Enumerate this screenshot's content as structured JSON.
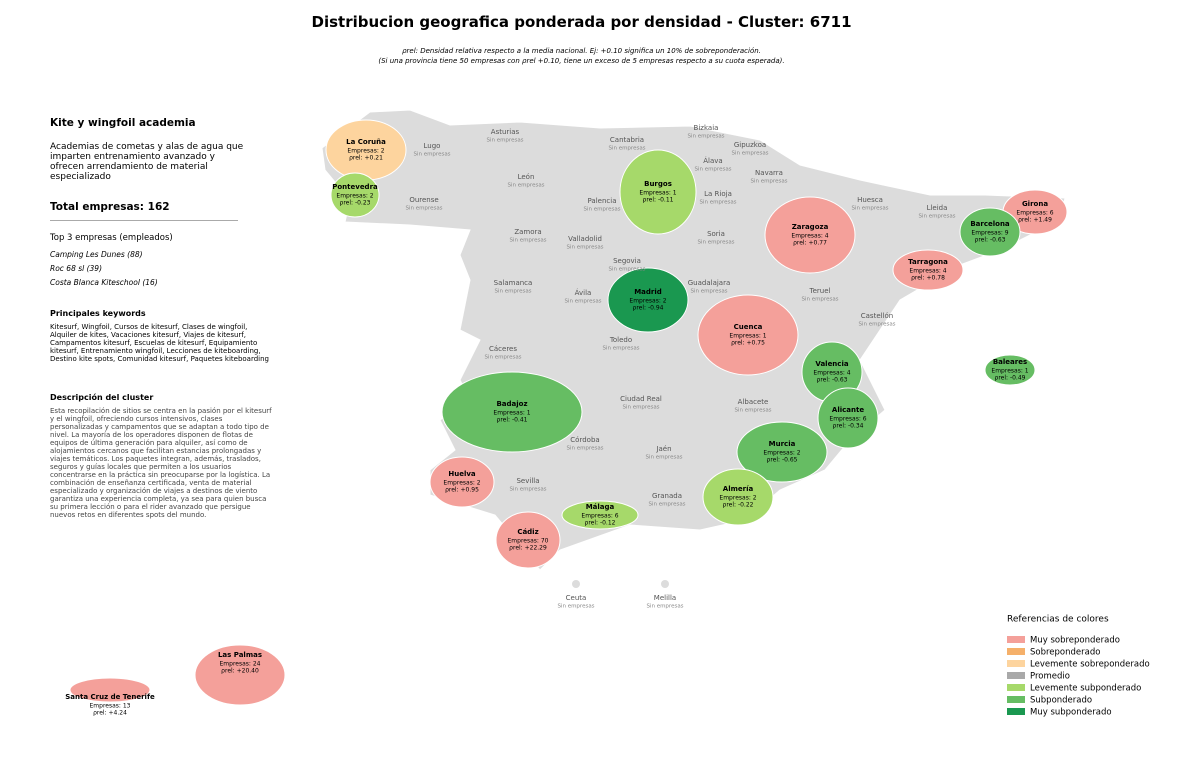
{
  "header": {
    "title": "Distribucion geografica ponderada por densidad - Cluster: 6711",
    "subtitle_lines": [
      "ρrel: Densidad relativa respecto a la media nacional. Ej: +0.10 significa un 10% de sobreponderación.",
      "(Si una provincia tiene 50 empresas con ρrel +0.10, tiene un exceso de 5 empresas respecto a su cuota esperada)."
    ]
  },
  "sidebar": {
    "cluster_name": "Kite y wingfoil academia",
    "summary": "Academias de cometas y alas de agua que imparten entrenamiento avanzado y ofrecen arrendamiento de material especializado",
    "total": "Total empresas: 162",
    "top_heading": "Top 3 empresas (empleados)",
    "top": [
      "Camping Les Dunes (88)",
      "Roc 68 sl (39)",
      "Costa Blanca Kiteschool (16)"
    ],
    "keywords_heading": "Principales keywords",
    "keywords": "Kitesurf, Wingfoil, Cursos de kitesurf, Clases de wingfoil, Alquiler de kites, Vacaciones kitesurf, Viajes de kitesurf, Campamentos kitesurf, Escuelas de kitesurf, Equipamiento kitesurf, Entrenamiento wingfoil, Lecciones de kiteboarding, Destino kite spots, Comunidad kitesurf, Paquetes kiteboarding",
    "description_heading": "Descripción del cluster",
    "description": "Esta recopilación de sitios se centra en la pasión por el kitesurf y el wingfoil, ofreciendo cursos intensivos, clases personalizadas y campamentos que se adaptan a todo tipo de nivel. La mayoría de los operadores disponen de flotas de equipos de última generación para alquiler, así como de alojamientos cercanos que facilitan estancias prolongadas y viajes temáticos. Los paquetes integran, además, traslados, seguros y guías locales que permiten a los usuarios concentrarse en la práctica sin preocuparse por la logística. La combinación de enseñanza certificada, venta de material especializado y organización de viajes a destinos de viento garantiza una experiencia completa, ya sea para quien busca su primera lección o para el rider avanzado que persigue nuevos retos en diferentes spots del mundo."
  },
  "provinces": [
    {
      "name": "La Coruña",
      "empresas": "Empresas: 2",
      "rho": "ρrel: +0.21",
      "color": "#fdd49e"
    },
    {
      "name": "Pontevedra",
      "empresas": "Empresas: 2",
      "rho": "ρrel: -0.23",
      "color": "#a6d96a"
    },
    {
      "name": "Burgos",
      "empresas": "Empresas: 1",
      "rho": "ρrel: -0.11",
      "color": "#a6d96a"
    },
    {
      "name": "Girona",
      "empresas": "Empresas: 6",
      "rho": "ρrel: +1.49",
      "color": "#f4a09a"
    },
    {
      "name": "Barcelona",
      "empresas": "Empresas: 9",
      "rho": "ρrel: -0.63",
      "color": "#66bd63"
    },
    {
      "name": "Zaragoza",
      "empresas": "Empresas: 4",
      "rho": "ρrel: +0.77",
      "color": "#f4a09a"
    },
    {
      "name": "Tarragona",
      "empresas": "Empresas: 4",
      "rho": "ρrel: +0.78",
      "color": "#f4a09a"
    },
    {
      "name": "Madrid",
      "empresas": "Empresas: 2",
      "rho": "ρrel: -0.94",
      "color": "#1a9850"
    },
    {
      "name": "Cuenca",
      "empresas": "Empresas: 1",
      "rho": "ρrel: +0.75",
      "color": "#f4a09a"
    },
    {
      "name": "Valencia",
      "empresas": "Empresas: 4",
      "rho": "ρrel: -0.63",
      "color": "#66bd63"
    },
    {
      "name": "Baleares",
      "empresas": "Empresas: 1",
      "rho": "ρrel: -0.49",
      "color": "#66bd63"
    },
    {
      "name": "Badajoz",
      "empresas": "Empresas: 1",
      "rho": "ρrel: -0.41",
      "color": "#66bd63"
    },
    {
      "name": "Alicante",
      "empresas": "Empresas: 6",
      "rho": "ρrel: -0.34",
      "color": "#66bd63"
    },
    {
      "name": "Murcia",
      "empresas": "Empresas: 2",
      "rho": "ρrel: -0.65",
      "color": "#66bd63"
    },
    {
      "name": "Huelva",
      "empresas": "Empresas: 2",
      "rho": "ρrel: +0.95",
      "color": "#f4a09a"
    },
    {
      "name": "Almería",
      "empresas": "Empresas: 2",
      "rho": "ρrel: -0.22",
      "color": "#a6d96a"
    },
    {
      "name": "Málaga",
      "empresas": "Empresas: 6",
      "rho": "ρrel: -0.12",
      "color": "#a6d96a"
    },
    {
      "name": "Cádiz",
      "empresas": "Empresas: 70",
      "rho": "ρrel: +22.29",
      "color": "#f4a09a"
    },
    {
      "name": "Las Palmas",
      "empresas": "Empresas: 24",
      "rho": "ρrel: +20.40",
      "color": "#f4a09a"
    },
    {
      "name": "Santa Cruz de Tenerife",
      "empresas": "Empresas: 13",
      "rho": "ρrel: +4.24",
      "color": "#f4a09a"
    }
  ],
  "empty_provinces": [
    {
      "name": "Lugo",
      "note": "Sin empresas"
    },
    {
      "name": "Asturias",
      "note": "Sin empresas"
    },
    {
      "name": "Cantabria",
      "note": "Sin empresas"
    },
    {
      "name": "Bizkaia",
      "note": "Sin empresas"
    },
    {
      "name": "Gipuzkoa",
      "note": "Sin empresas"
    },
    {
      "name": "Álava",
      "note": "Sin empresas"
    },
    {
      "name": "Navarra",
      "note": "Sin empresas"
    },
    {
      "name": "León",
      "note": "Sin empresas"
    },
    {
      "name": "Palencia",
      "note": "Sin empresas"
    },
    {
      "name": "La Rioja",
      "note": "Sin empresas"
    },
    {
      "name": "Ourense",
      "note": "Sin empresas"
    },
    {
      "name": "Huesca",
      "note": "Sin empresas"
    },
    {
      "name": "Lleida",
      "note": "Sin empresas"
    },
    {
      "name": "Zamora",
      "note": "Sin empresas"
    },
    {
      "name": "Valladolid",
      "note": "Sin empresas"
    },
    {
      "name": "Soria",
      "note": "Sin empresas"
    },
    {
      "name": "Segovia",
      "note": "Sin empresas"
    },
    {
      "name": "Salamanca",
      "note": "Sin empresas"
    },
    {
      "name": "Ávila",
      "note": "Sin empresas"
    },
    {
      "name": "Guadalajara",
      "note": "Sin empresas"
    },
    {
      "name": "Teruel",
      "note": "Sin empresas"
    },
    {
      "name": "Castellón",
      "note": "Sin empresas"
    },
    {
      "name": "Toledo",
      "note": "Sin empresas"
    },
    {
      "name": "Cáceres",
      "note": "Sin empresas"
    },
    {
      "name": "Ciudad Real",
      "note": "Sin empresas"
    },
    {
      "name": "Albacete",
      "note": "Sin empresas"
    },
    {
      "name": "Córdoba",
      "note": "Sin empresas"
    },
    {
      "name": "Jaén",
      "note": "Sin empresas"
    },
    {
      "name": "Sevilla",
      "note": "Sin empresas"
    },
    {
      "name": "Granada",
      "note": "Sin empresas"
    },
    {
      "name": "Ceuta",
      "note": "Sin empresas"
    },
    {
      "name": "Melilla",
      "note": "Sin empresas"
    }
  ],
  "legend": {
    "title": "Referencias de colores",
    "items": [
      {
        "label": "Muy sobreponderado",
        "color": "#f4a09a"
      },
      {
        "label": "Sobreponderado",
        "color": "#f5b06a"
      },
      {
        "label": "Levemente sobreponderado",
        "color": "#fdd49e"
      },
      {
        "label": "Promedio",
        "color": "#a9a9a9"
      },
      {
        "label": "Levemente subponderado",
        "color": "#a6d96a"
      },
      {
        "label": "Subponderado",
        "color": "#66bd63"
      },
      {
        "label": "Muy subponderado",
        "color": "#1a9850"
      }
    ]
  }
}
